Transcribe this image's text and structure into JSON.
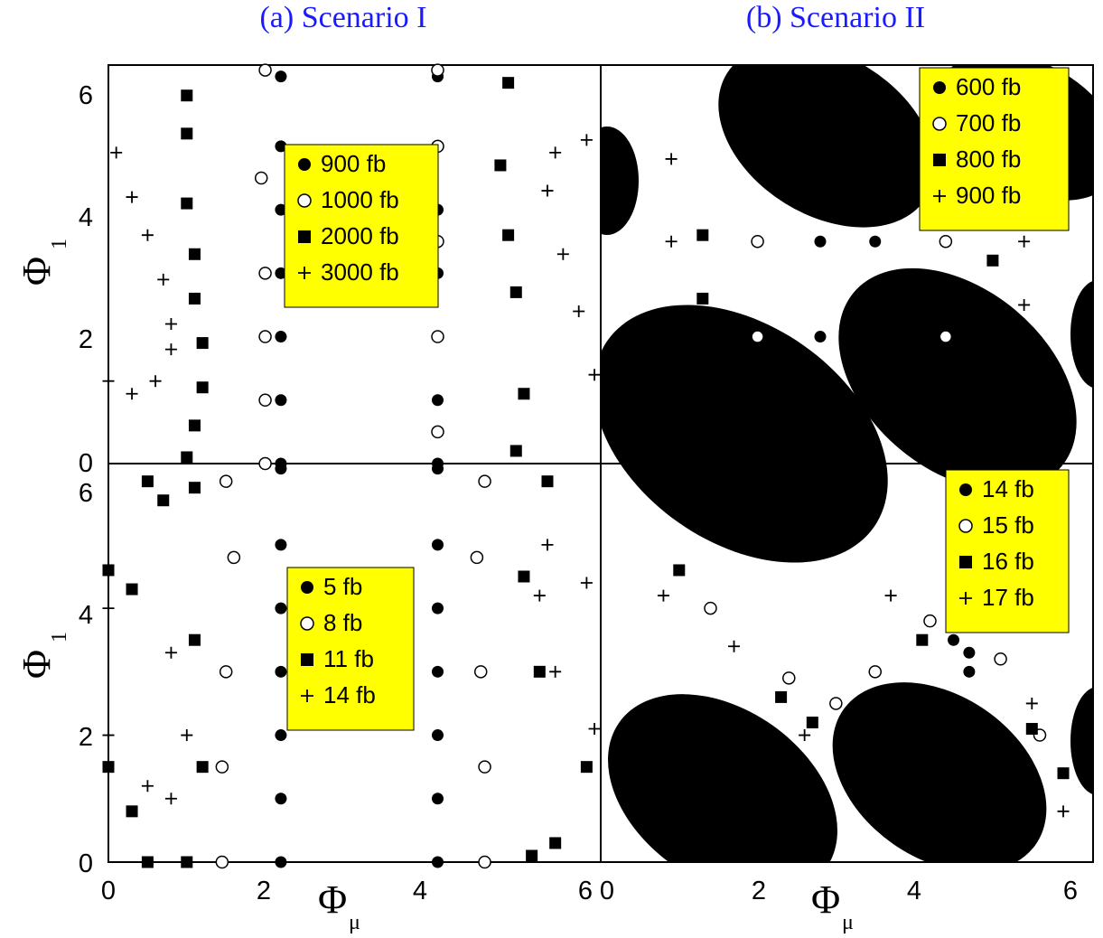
{
  "titles": [
    "(a)  Scenario I",
    "(b)  Scenario II"
  ],
  "axis_labels": {
    "x": "Φ",
    "x_sub": "μ",
    "y": "Φ",
    "y_sub": "1"
  },
  "x_ticks": [
    "0",
    "2",
    "4",
    "6",
    "0",
    "2",
    "4",
    "6"
  ],
  "y_ticks_top": [
    "6",
    "4",
    "2",
    "0"
  ],
  "y_ticks_bottom": [
    "6",
    "4",
    "2",
    "0"
  ],
  "chart_data": [
    {
      "type": "scatter",
      "title": "(a)  Scenario I",
      "xlabel": "Φμ",
      "ylabel": "Φ1",
      "xlim": [
        0,
        6.28
      ],
      "ylim": [
        0,
        6.28
      ],
      "legend": [
        "900 fb",
        "1000 fb",
        "2000 fb",
        "3000 fb"
      ],
      "legend_position": "upper-right",
      "series": [
        {
          "name": "900 fb",
          "marker": "filled-circle",
          "points": [
            [
              2.2,
              0
            ],
            [
              2.2,
              1
            ],
            [
              2.2,
              2
            ],
            [
              2.2,
              3
            ],
            [
              2.2,
              4
            ],
            [
              2.2,
              5
            ],
            [
              2.2,
              6.1
            ],
            [
              4.2,
              0
            ],
            [
              4.2,
              1
            ],
            [
              4.2,
              2
            ],
            [
              4.2,
              3
            ],
            [
              4.2,
              4
            ],
            [
              4.2,
              5
            ],
            [
              4.2,
              6.1
            ]
          ]
        },
        {
          "name": "1000 fb",
          "marker": "open-circle",
          "points": [
            [
              2.0,
              0
            ],
            [
              2.0,
              1
            ],
            [
              2.0,
              2
            ],
            [
              2.0,
              3
            ],
            [
              1.95,
              4.5
            ],
            [
              2.0,
              6.2
            ],
            [
              4.2,
              0.5
            ],
            [
              4.2,
              2
            ],
            [
              4.2,
              3.5
            ],
            [
              4.2,
              5
            ],
            [
              4.2,
              6.2
            ]
          ]
        },
        {
          "name": "2000 fb",
          "marker": "filled-square",
          "points": [
            [
              1.0,
              0.1
            ],
            [
              1.1,
              0.6
            ],
            [
              1.2,
              1.2
            ],
            [
              1.2,
              1.9
            ],
            [
              1.1,
              2.6
            ],
            [
              1.1,
              3.3
            ],
            [
              1.0,
              4.1
            ],
            [
              1.0,
              5.2
            ],
            [
              1.0,
              5.8
            ],
            [
              5.2,
              0.2
            ],
            [
              5.3,
              1.1
            ],
            [
              5.2,
              2.7
            ],
            [
              5.1,
              3.6
            ],
            [
              5.0,
              4.7
            ],
            [
              5.1,
              6.0
            ]
          ]
        },
        {
          "name": "3000 fb",
          "marker": "plus",
          "points": [
            [
              0.0,
              1.3
            ],
            [
              0.3,
              1.1
            ],
            [
              0.6,
              1.3
            ],
            [
              0.8,
              1.8
            ],
            [
              0.8,
              2.2
            ],
            [
              0.7,
              2.9
            ],
            [
              0.5,
              3.6
            ],
            [
              0.3,
              4.2
            ],
            [
              0.1,
              4.9
            ],
            [
              6.2,
              1.4
            ],
            [
              6.0,
              2.4
            ],
            [
              5.8,
              3.3
            ],
            [
              5.6,
              4.3
            ],
            [
              5.7,
              4.9
            ],
            [
              6.1,
              5.1
            ]
          ]
        }
      ]
    },
    {
      "type": "scatter",
      "title": "(a)  Scenario I",
      "xlabel": "Φμ",
      "ylabel": "Φ1",
      "xlim": [
        0,
        6.28
      ],
      "ylim": [
        0,
        6.28
      ],
      "legend": [
        "5 fb",
        "8 fb",
        "11 fb",
        "14 fb"
      ],
      "legend_position": "right",
      "series": [
        {
          "name": "5 fb",
          "marker": "filled-circle",
          "points": [
            [
              2.2,
              0
            ],
            [
              2.2,
              1
            ],
            [
              2.2,
              2
            ],
            [
              2.2,
              3
            ],
            [
              2.2,
              4
            ],
            [
              2.2,
              5
            ],
            [
              2.2,
              6.2
            ],
            [
              4.2,
              0
            ],
            [
              4.2,
              1
            ],
            [
              4.2,
              2
            ],
            [
              4.2,
              3
            ],
            [
              4.2,
              4
            ],
            [
              4.2,
              5
            ],
            [
              4.2,
              6.2
            ]
          ]
        },
        {
          "name": "8 fb",
          "marker": "open-circle",
          "points": [
            [
              1.45,
              0
            ],
            [
              1.45,
              1.5
            ],
            [
              1.5,
              3
            ],
            [
              1.6,
              4.8
            ],
            [
              1.5,
              6.0
            ],
            [
              4.8,
              0
            ],
            [
              4.8,
              1.5
            ],
            [
              4.75,
              3
            ],
            [
              4.7,
              4.8
            ],
            [
              4.8,
              6.0
            ]
          ]
        },
        {
          "name": "11 fb",
          "marker": "filled-square",
          "points": [
            [
              0.0,
              1.5
            ],
            [
              0.3,
              0.8
            ],
            [
              0.5,
              0
            ],
            [
              1.0,
              0
            ],
            [
              1.2,
              1.5
            ],
            [
              1.1,
              3.5
            ],
            [
              0.3,
              4.3
            ],
            [
              0,
              4.6
            ],
            [
              0.5,
              6.0
            ],
            [
              0.7,
              5.7
            ],
            [
              1.1,
              5.9
            ],
            [
              5.4,
              0.1
            ],
            [
              5.7,
              0.3
            ],
            [
              6.1,
              1.5
            ],
            [
              5.5,
              3
            ],
            [
              5.3,
              4.5
            ],
            [
              5.6,
              6.0
            ]
          ]
        },
        {
          "name": "14 fb",
          "marker": "plus",
          "points": [
            [
              0.0,
              2.0
            ],
            [
              0.5,
              1.2
            ],
            [
              0.8,
              1.0
            ],
            [
              1.0,
              2.0
            ],
            [
              0.8,
              3.3
            ],
            [
              0.0,
              4.0
            ],
            [
              6.2,
              2.1
            ],
            [
              5.7,
              3
            ],
            [
              5.5,
              4.2
            ],
            [
              5.6,
              5.0
            ],
            [
              6.1,
              4.4
            ]
          ]
        }
      ]
    },
    {
      "type": "scatter",
      "title": "(b)  Scenario II",
      "xlabel": "Φμ",
      "ylabel": "Φ1",
      "xlim": [
        0,
        6.28
      ],
      "ylim": [
        0,
        6.28
      ],
      "legend": [
        "600 fb",
        "700 fb",
        "800 fb",
        "900 fb"
      ],
      "legend_position": "upper-right",
      "series": [
        {
          "name": "600 fb",
          "marker": "filled-circle",
          "points": [
            [
              2.8,
              0.5
            ],
            [
              2.8,
              2
            ],
            [
              2.8,
              3.5
            ],
            [
              3.5,
              2
            ],
            [
              3.5,
              3.5
            ]
          ]
        },
        {
          "name": "700 fb",
          "marker": "open-circle",
          "points": [
            [
              2.0,
              2
            ],
            [
              2.0,
              3.5
            ],
            [
              4.4,
              2
            ],
            [
              4.4,
              3.5
            ]
          ]
        },
        {
          "name": "800 fb",
          "marker": "filled-square",
          "points": [
            [
              1.3,
              2.6
            ],
            [
              1.3,
              3.6
            ],
            [
              5.0,
              2.2
            ],
            [
              5.0,
              3.2
            ]
          ]
        },
        {
          "name": "900 fb",
          "marker": "plus",
          "points": [
            [
              0.9,
              1.5
            ],
            [
              0.9,
              3.5
            ],
            [
              0.9,
              4.8
            ],
            [
              5.4,
              1.2
            ],
            [
              5.4,
              2.5
            ],
            [
              5.4,
              3.5
            ]
          ]
        }
      ]
    },
    {
      "type": "scatter",
      "title": "(b)  Scenario II",
      "xlabel": "Φμ",
      "ylabel": "Φ1",
      "xlim": [
        0,
        6.28
      ],
      "ylim": [
        0,
        6.28
      ],
      "legend": [
        "14 fb",
        "15 fb",
        "16 fb",
        "17 fb"
      ],
      "legend_position": "upper-right",
      "series": [
        {
          "name": "14 fb",
          "marker": "filled-circle",
          "points": [
            [
              4.5,
              3.5
            ],
            [
              4.7,
              3.0
            ],
            [
              4.8,
              2.2
            ],
            [
              4.7,
              3.3
            ]
          ]
        },
        {
          "name": "15 fb",
          "marker": "open-circle",
          "points": [
            [
              1.4,
              4.0
            ],
            [
              2.4,
              2.9
            ],
            [
              3.0,
              2.5
            ],
            [
              3.5,
              3.0
            ],
            [
              4.2,
              3.8
            ],
            [
              5.1,
              3.2
            ],
            [
              5.6,
              2.0
            ]
          ]
        },
        {
          "name": "16 fb",
          "marker": "filled-square",
          "points": [
            [
              1.0,
              4.6
            ],
            [
              2.3,
              2.6
            ],
            [
              2.7,
              2.2
            ],
            [
              4.1,
              3.5
            ],
            [
              5.5,
              2.1
            ],
            [
              5.9,
              1.4
            ]
          ]
        },
        {
          "name": "17 fb",
          "marker": "plus",
          "points": [
            [
              0.8,
              4.2
            ],
            [
              1.7,
              3.4
            ],
            [
              2.6,
              2.0
            ],
            [
              3.7,
              4.2
            ],
            [
              5.5,
              2.5
            ],
            [
              5.9,
              0.8
            ]
          ]
        }
      ]
    }
  ],
  "legend_bg": "#ffff00",
  "region_fill": "#000000"
}
